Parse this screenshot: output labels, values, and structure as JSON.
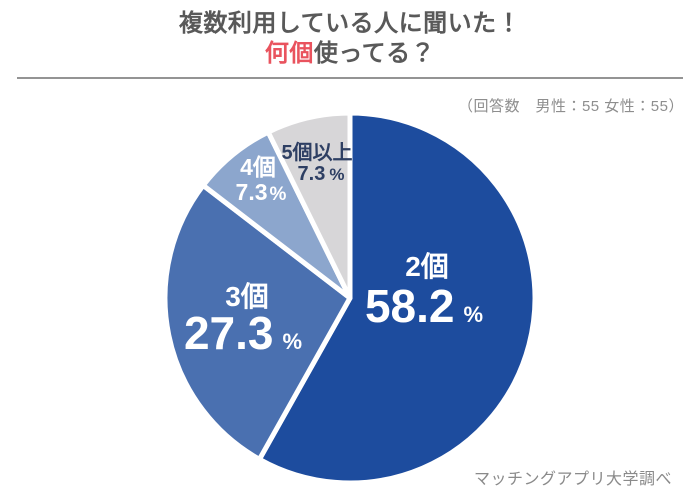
{
  "header": {
    "title_line1": "複数利用している人に聞いた！",
    "title_line2_accent": "何個",
    "title_line2_rest": "使ってる？",
    "accent_color": "#e9535e",
    "respondents": "（回答数　男性：55 女性：55）"
  },
  "footer": {
    "source": "マッチングアプリ大学調べ"
  },
  "colors": {
    "title_text": "#595959",
    "subtitle_text": "#8e8e8e",
    "divider": "#949494",
    "slice_stroke": "#ffffff"
  },
  "chart_data": {
    "type": "pie",
    "title": "複数利用している人に聞いた！何個使ってる？",
    "subtitle": "（回答数　男性：55 女性：55）",
    "source": "マッチングアプリ大学調べ",
    "start_angle": "top",
    "direction": "clockwise",
    "legend_position": "none",
    "slices": [
      {
        "label": "2個",
        "value": 58.2,
        "unit": "%",
        "color": "#1d4c9e",
        "label_color": "#ffffff"
      },
      {
        "label": "3個",
        "value": 27.3,
        "unit": "%",
        "color": "#4a70b0",
        "label_color": "#ffffff"
      },
      {
        "label": "4個",
        "value": 7.3,
        "unit": "%",
        "color": "#8ca6cd",
        "label_color": "#ffffff"
      },
      {
        "label": "5個以上",
        "value": 7.3,
        "unit": "%",
        "color": "#d7d6d8",
        "label_color": "#2e3f63"
      }
    ]
  }
}
